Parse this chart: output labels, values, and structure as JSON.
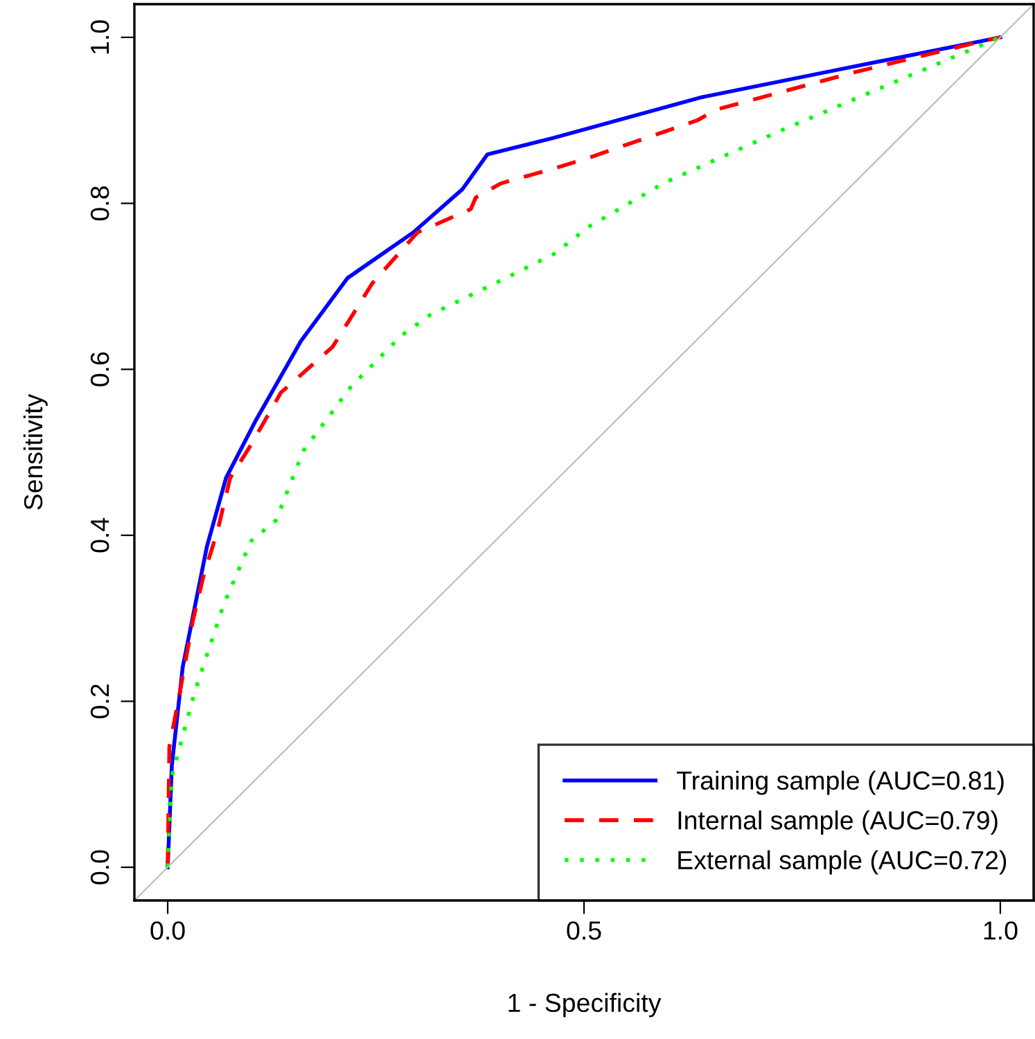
{
  "chart_data": {
    "type": "line",
    "xlabel": "1 - Specificity",
    "ylabel": "Sensitivity",
    "xlim": [
      -0.04,
      1.04
    ],
    "ylim": [
      -0.04,
      1.04
    ],
    "xticks": [
      {
        "value": 0,
        "label": "0.0"
      },
      {
        "value": 0.5,
        "label": "0.5"
      },
      {
        "value": 1,
        "label": "1.0"
      }
    ],
    "yticks": [
      {
        "value": 0,
        "label": "0.0"
      },
      {
        "value": 0.2,
        "label": "0.2"
      },
      {
        "value": 0.4,
        "label": "0.4"
      },
      {
        "value": 0.6,
        "label": "0.6"
      },
      {
        "value": 0.8,
        "label": "0.8"
      },
      {
        "value": 1,
        "label": "1.0"
      }
    ],
    "grid": false,
    "legend": "bottom right",
    "series": [
      {
        "name": "Training sample (AUC=0.81)",
        "color": "#0000ff",
        "line_style": "solid",
        "x": [
          0,
          0.005,
          0.018,
          0.047,
          0.07,
          0.105,
          0.16,
          0.216,
          0.295,
          0.354,
          0.384,
          0.464,
          0.642,
          0.8,
          1
        ],
        "values": [
          0,
          0.123,
          0.241,
          0.386,
          0.469,
          0.537,
          0.634,
          0.71,
          0.765,
          0.817,
          0.859,
          0.879,
          0.928,
          0.96,
          1
        ]
      },
      {
        "name": "Internal sample (AUC=0.79)",
        "color": "#ff0000",
        "line_style": "dashed",
        "x": [
          0,
          0.002,
          0.015,
          0.03,
          0.043,
          0.06,
          0.075,
          0.1,
          0.136,
          0.198,
          0.246,
          0.3,
          0.364,
          0.37,
          0.4,
          0.464,
          0.506,
          0.636,
          0.659,
          0.825,
          0.985,
          1
        ],
        "values": [
          0,
          0.145,
          0.213,
          0.296,
          0.351,
          0.406,
          0.469,
          0.509,
          0.572,
          0.627,
          0.704,
          0.765,
          0.793,
          0.807,
          0.824,
          0.842,
          0.855,
          0.9,
          0.913,
          0.958,
          0.997,
          1
        ]
      },
      {
        "name": "External sample (AUC=0.72)",
        "color": "#00ff00",
        "line_style": "dotted",
        "x": [
          0,
          0.005,
          0.033,
          0.067,
          0.1,
          0.13,
          0.163,
          0.22,
          0.281,
          0.316,
          0.406,
          0.464,
          0.506,
          0.597,
          0.735,
          0.875,
          1
        ],
        "values": [
          0,
          0.11,
          0.213,
          0.316,
          0.393,
          0.418,
          0.502,
          0.579,
          0.641,
          0.666,
          0.71,
          0.739,
          0.772,
          0.825,
          0.887,
          0.947,
          1
        ]
      },
      {
        "color": "#bebebe",
        "line_style": "solid",
        "x": [
          -0.04,
          1.04
        ],
        "values": [
          -0.04,
          1.04
        ]
      }
    ]
  }
}
